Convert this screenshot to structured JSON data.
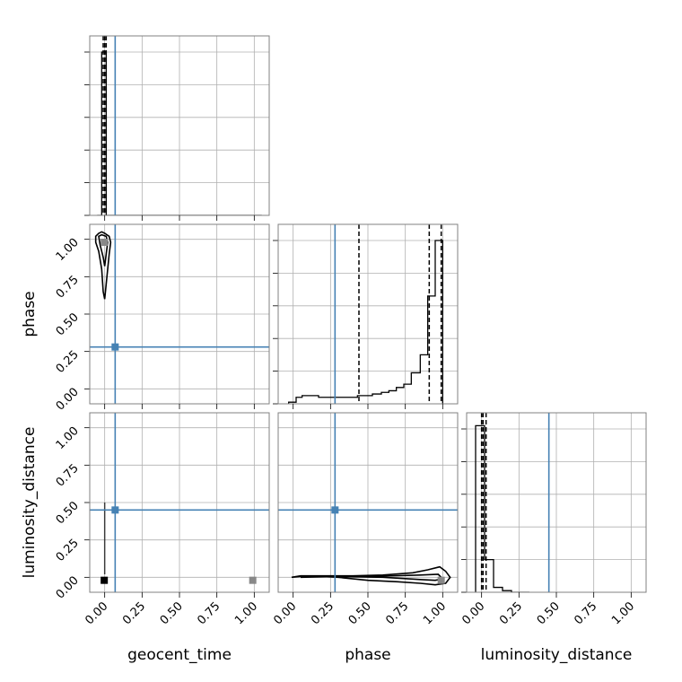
{
  "chart_data": {
    "type": "corner",
    "parameters": [
      "geocent_time",
      "phase",
      "luminosity_distance"
    ],
    "axis_range": [
      -0.1,
      1.1
    ],
    "ticks": [
      0.0,
      0.25,
      0.5,
      0.75,
      1.0
    ],
    "tick_labels": [
      "0.00",
      "0.25",
      "0.50",
      "0.75",
      "1.00"
    ],
    "grid": true,
    "colors": {
      "truth": "#4682b4",
      "samples": "#000000",
      "frame": "#808080",
      "grid": "#b0b0b0"
    },
    "truths": {
      "geocent_time": 0.07,
      "phase": 0.28,
      "luminosity_distance": 0.45
    },
    "quantiles": {
      "geocent_time": [
        -0.01,
        0.0,
        0.01
      ],
      "phase": [
        0.44,
        0.91,
        0.99
      ],
      "luminosity_distance": [
        0.0,
        0.01,
        0.03
      ]
    },
    "histograms": {
      "geocent_time": {
        "edges": [
          -0.05,
          -0.02,
          0.01,
          0.04,
          1.05
        ],
        "counts": [
          0,
          1.0,
          0,
          0
        ]
      },
      "phase": {
        "edges": [
          -0.03,
          0.02,
          0.06,
          0.11,
          0.17,
          0.22,
          0.27,
          0.32,
          0.38,
          0.43,
          0.48,
          0.53,
          0.59,
          0.64,
          0.69,
          0.74,
          0.79,
          0.85,
          0.9,
          0.95,
          1.0
        ],
        "counts": [
          0.01,
          0.04,
          0.05,
          0.05,
          0.04,
          0.04,
          0.04,
          0.04,
          0.04,
          0.05,
          0.05,
          0.06,
          0.07,
          0.08,
          0.1,
          0.12,
          0.19,
          0.3,
          0.66,
          1.0
        ]
      },
      "luminosity_distance": {
        "edges": [
          -0.04,
          0.02,
          0.08,
          0.14,
          0.2,
          0.26,
          0.32
        ],
        "counts": [
          1.02,
          0.2,
          0.03,
          0.01,
          0.0,
          0.0
        ]
      }
    },
    "contours": {
      "geocent_time_phase": [
        [
          [
            -0.06,
            1.02
          ],
          [
            -0.04,
            1.04
          ],
          [
            -0.02,
            1.05
          ],
          [
            0.0,
            1.04
          ],
          [
            0.03,
            1.02
          ],
          [
            0.04,
            0.98
          ],
          [
            0.03,
            0.9
          ],
          [
            0.02,
            0.8
          ],
          [
            0.01,
            0.7
          ],
          [
            0.0,
            0.6
          ],
          [
            -0.01,
            0.65
          ],
          [
            -0.02,
            0.8
          ],
          [
            -0.04,
            0.92
          ],
          [
            -0.06,
            0.98
          ],
          [
            -0.06,
            1.02
          ]
        ],
        [
          [
            -0.04,
            1.02
          ],
          [
            -0.02,
            1.03
          ],
          [
            0.01,
            1.02
          ],
          [
            0.02,
            0.98
          ],
          [
            0.01,
            0.9
          ],
          [
            0.0,
            0.82
          ],
          [
            -0.01,
            0.88
          ],
          [
            -0.03,
            0.96
          ],
          [
            -0.04,
            1.02
          ]
        ]
      ],
      "phase_luminosity_distance": [
        [
          [
            -0.01,
            0.0
          ],
          [
            0.1,
            0.01
          ],
          [
            0.3,
            0.0
          ],
          [
            0.5,
            -0.02
          ],
          [
            0.7,
            -0.03
          ],
          [
            0.85,
            -0.04
          ],
          [
            0.95,
            -0.05
          ],
          [
            1.02,
            -0.04
          ],
          [
            1.05,
            0.0
          ],
          [
            1.02,
            0.04
          ],
          [
            0.98,
            0.07
          ],
          [
            0.9,
            0.05
          ],
          [
            0.8,
            0.03
          ],
          [
            0.6,
            0.015
          ],
          [
            0.4,
            0.01
          ],
          [
            0.2,
            0.01
          ],
          [
            0.05,
            0.01
          ],
          [
            -0.01,
            0.0
          ]
        ],
        [
          [
            0.05,
            0.0
          ],
          [
            0.3,
            0.005
          ],
          [
            0.6,
            0.0
          ],
          [
            0.85,
            -0.015
          ],
          [
            0.95,
            -0.02
          ],
          [
            1.0,
            -0.01
          ],
          [
            0.97,
            0.02
          ],
          [
            0.85,
            0.015
          ],
          [
            0.6,
            0.008
          ],
          [
            0.3,
            0.007
          ],
          [
            0.05,
            0.0
          ]
        ]
      ]
    }
  }
}
